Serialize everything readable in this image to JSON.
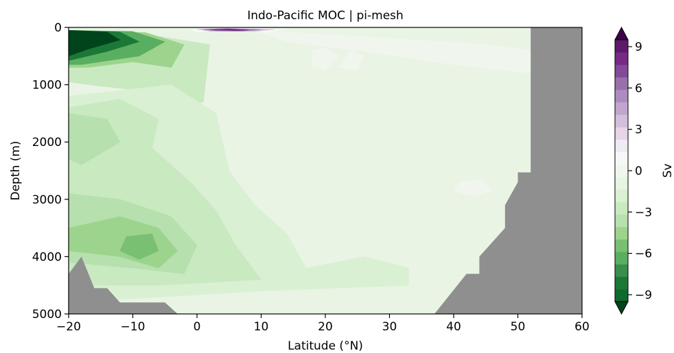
{
  "chart_data": {
    "type": "heatmap",
    "title": "Indo-Pacific MOC | pi-mesh",
    "xlabel": "Latitude (°N)",
    "ylabel": "Depth (m)",
    "xlim": [
      -20,
      60
    ],
    "ylim": [
      5000,
      0
    ],
    "x_ticks": [
      -20,
      -10,
      0,
      10,
      20,
      30,
      40,
      50,
      60
    ],
    "x_tick_labels": [
      "−20",
      "−10",
      "0",
      "10",
      "20",
      "30",
      "40",
      "50",
      "60"
    ],
    "y_ticks": [
      0,
      1000,
      2000,
      3000,
      4000,
      5000
    ],
    "y_tick_labels": [
      "0",
      "1000",
      "2000",
      "3000",
      "4000",
      "5000"
    ],
    "colorbar": {
      "label": "Sv",
      "range": [
        -10.5,
        10.5
      ],
      "level_step": 1,
      "extend": "both",
      "ticks": [
        -9,
        -6,
        -3,
        0,
        3,
        6,
        9
      ],
      "tick_labels": [
        "−9",
        "−6",
        "−3",
        "0",
        "3",
        "6",
        "9"
      ]
    },
    "colormap": [
      "#00441b",
      "#0e6a2d",
      "#1b7837",
      "#3a8e4b",
      "#5aae61",
      "#79c073",
      "#9cd48d",
      "#b6e0ad",
      "#c9e9c1",
      "#d9f0d3",
      "#e6f4e2",
      "#f0f6ed",
      "#f7f7f7",
      "#f0ebf3",
      "#e7d4e8",
      "#d3bfdb",
      "#c2a5cf",
      "#ad8bc0",
      "#9970ab",
      "#844a9a",
      "#762a83",
      "#5c1a6b",
      "#40004b"
    ],
    "mask_color": "#8f8f8f",
    "fields": [
      {
        "name": "upper_south_cell",
        "value": -2,
        "poly": [
          [
            -20,
            50
          ],
          [
            -9,
            100
          ],
          [
            2,
            300
          ],
          [
            1,
            1300
          ],
          [
            -3,
            1400
          ],
          [
            -9,
            1100
          ],
          [
            -17,
            1000
          ],
          [
            -20,
            950
          ]
        ]
      },
      {
        "name": "upper_south_cell",
        "value": -4,
        "poly": [
          [
            -20,
            50
          ],
          [
            -8,
            90
          ],
          [
            -2,
            300
          ],
          [
            -4,
            700
          ],
          [
            -10,
            600
          ],
          [
            -17,
            700
          ],
          [
            -20,
            700
          ]
        ]
      },
      {
        "name": "upper_south_cell",
        "value": -6,
        "poly": [
          [
            -20,
            50
          ],
          [
            -10,
            70
          ],
          [
            -5,
            250
          ],
          [
            -9,
            500
          ],
          [
            -18,
            650
          ],
          [
            -20,
            650
          ]
        ]
      },
      {
        "name": "upper_south_cell",
        "value": -8,
        "poly": [
          [
            -20,
            50
          ],
          [
            -12,
            80
          ],
          [
            -9,
            250
          ],
          [
            -14,
            420
          ],
          [
            -20,
            580
          ]
        ]
      },
      {
        "name": "upper_south_cell",
        "value": -10,
        "poly": [
          [
            -20,
            50
          ],
          [
            -14,
            80
          ],
          [
            -12,
            220
          ],
          [
            -17,
            380
          ],
          [
            -20,
            500
          ]
        ]
      },
      {
        "name": "deep_cell",
        "value": -1,
        "poly": [
          [
            -20,
            1200
          ],
          [
            -4,
            1000
          ],
          [
            3,
            1500
          ],
          [
            5,
            2500
          ],
          [
            9,
            3100
          ],
          [
            14,
            3600
          ],
          [
            17,
            4200
          ],
          [
            26,
            4000
          ],
          [
            33,
            4200
          ],
          [
            33,
            4500
          ],
          [
            10,
            4600
          ],
          [
            -20,
            4800
          ]
        ]
      },
      {
        "name": "deep_cell",
        "value": -2,
        "poly": [
          [
            -20,
            1400
          ],
          [
            -12,
            1250
          ],
          [
            -6,
            1600
          ],
          [
            -7,
            2100
          ],
          [
            -1,
            2700
          ],
          [
            3,
            3200
          ],
          [
            6,
            3800
          ],
          [
            10,
            4400
          ],
          [
            -6,
            4500
          ],
          [
            -20,
            4500
          ]
        ]
      },
      {
        "name": "deep_cell",
        "value": -3,
        "poly": [
          [
            -20,
            1500
          ],
          [
            -14,
            1600
          ],
          [
            -12,
            2000
          ],
          [
            -18,
            2400
          ],
          [
            -20,
            2300
          ]
        ]
      },
      {
        "name": "deep_cell",
        "value": -3,
        "poly": [
          [
            -20,
            2900
          ],
          [
            -12,
            3000
          ],
          [
            -4,
            3300
          ],
          [
            0,
            3800
          ],
          [
            -2,
            4300
          ],
          [
            -10,
            4200
          ],
          [
            -20,
            4100
          ]
        ]
      },
      {
        "name": "deep_cell",
        "value": -4,
        "poly": [
          [
            -20,
            3500
          ],
          [
            -12,
            3300
          ],
          [
            -6,
            3500
          ],
          [
            -3,
            3900
          ],
          [
            -6,
            4200
          ],
          [
            -12,
            4000
          ],
          [
            -20,
            3900
          ]
        ]
      },
      {
        "name": "deep_cell",
        "value": -5,
        "poly": [
          [
            -11,
            3650
          ],
          [
            -7,
            3600
          ],
          [
            -6,
            3900
          ],
          [
            -9,
            4050
          ],
          [
            -12,
            3900
          ]
        ]
      },
      {
        "name": "positive_lobe",
        "value": 1,
        "poly": [
          [
            18,
            400
          ],
          [
            20,
            350
          ],
          [
            22,
            500
          ],
          [
            20,
            750
          ],
          [
            18,
            700
          ]
        ]
      },
      {
        "name": "positive_lobe",
        "value": 1,
        "poly": [
          [
            24,
            400
          ],
          [
            26,
            500
          ],
          [
            25,
            750
          ],
          [
            22,
            700
          ]
        ]
      },
      {
        "name": "positive_lobe",
        "value": 1,
        "poly": [
          [
            9,
            50
          ],
          [
            25,
            150
          ],
          [
            45,
            300
          ],
          [
            52,
            400
          ],
          [
            52,
            800
          ],
          [
            40,
            650
          ],
          [
            28,
            450
          ],
          [
            14,
            250
          ]
        ]
      },
      {
        "name": "positive_lobe",
        "value": 1,
        "poly": [
          [
            41,
            2700
          ],
          [
            44,
            2650
          ],
          [
            46,
            2850
          ],
          [
            43,
            2950
          ],
          [
            40,
            2850
          ]
        ]
      },
      {
        "name": "surface_cell",
        "value": 2,
        "poly": [
          [
            -1,
            30
          ],
          [
            4,
            10
          ],
          [
            14,
            30
          ],
          [
            11,
            80
          ],
          [
            0,
            80
          ]
        ]
      },
      {
        "name": "surface_cell",
        "value": 5,
        "poly": [
          [
            0,
            30
          ],
          [
            4,
            15
          ],
          [
            12,
            35
          ],
          [
            9,
            70
          ],
          [
            2,
            70
          ]
        ]
      },
      {
        "name": "surface_cell",
        "value": 8,
        "poly": [
          [
            1,
            35
          ],
          [
            5,
            20
          ],
          [
            10,
            40
          ],
          [
            7,
            65
          ],
          [
            3,
            60
          ]
        ]
      },
      {
        "name": "surface_cell",
        "value": 10,
        "poly": [
          [
            2,
            40
          ],
          [
            5,
            28
          ],
          [
            8,
            45
          ],
          [
            6,
            58
          ]
        ]
      }
    ],
    "mask": [
      {
        "name": "seafloor_south",
        "poly": [
          [
            -20,
            4300
          ],
          [
            -18,
            4000
          ],
          [
            -16,
            4550
          ],
          [
            -14,
            4550
          ],
          [
            -12,
            4800
          ],
          [
            -5,
            4800
          ],
          [
            -3,
            5000
          ],
          [
            -20,
            5000
          ]
        ]
      },
      {
        "name": "seafloor_north",
        "poly": [
          [
            37,
            5000
          ],
          [
            42,
            4300
          ],
          [
            44,
            4300
          ],
          [
            44,
            4000
          ],
          [
            48,
            3500
          ],
          [
            48,
            3100
          ],
          [
            50,
            2700
          ],
          [
            50,
            2530
          ],
          [
            52,
            2530
          ],
          [
            52,
            0
          ],
          [
            60,
            0
          ],
          [
            60,
            5000
          ]
        ]
      }
    ]
  }
}
